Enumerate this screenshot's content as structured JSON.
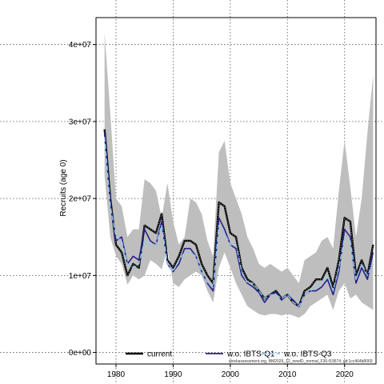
{
  "chart_data": {
    "type": "line",
    "title": "",
    "xlabel": "",
    "ylabel": "Recruits (age 0)",
    "xlim": [
      1976.5,
      2025.5
    ],
    "ylim": [
      -1500000,
      43500000
    ],
    "xticks": [
      1980,
      1990,
      2000,
      2010,
      2020
    ],
    "yticks": [
      0,
      10000000,
      20000000,
      30000000,
      40000000
    ],
    "ytick_labels": [
      "0e+00",
      "1e+07",
      "2e+07",
      "3e+07",
      "4e+07"
    ],
    "grid": true,
    "legend_position": "bottom",
    "x": [
      1978,
      1979,
      1980,
      1981,
      1982,
      1983,
      1984,
      1985,
      1986,
      1987,
      1988,
      1989,
      1990,
      1991,
      1992,
      1993,
      1994,
      1995,
      1996,
      1997,
      1998,
      1999,
      2000,
      2001,
      2002,
      2003,
      2004,
      2005,
      2006,
      2007,
      2008,
      2009,
      2010,
      2011,
      2012,
      2013,
      2014,
      2015,
      2016,
      2017,
      2018,
      2019,
      2020,
      2021,
      2022,
      2023,
      2024,
      2025
    ],
    "band": {
      "color": "#bebebe",
      "lower": [
        23000000,
        15000000,
        12500000,
        11500000,
        8800000,
        10000000,
        9500000,
        10000000,
        12000000,
        11500000,
        10800000,
        13500000,
        9000000,
        8500000,
        9500000,
        10000000,
        10500000,
        10000000,
        8000000,
        6500000,
        11000000,
        13000000,
        11000000,
        9000000,
        7500000,
        6000000,
        5500000,
        5000000,
        4800000,
        5000000,
        5000000,
        4800000,
        5000000,
        4800000,
        4500000,
        5000000,
        6000000,
        6500000,
        7000000,
        7500000,
        5500000,
        8000000,
        9000000,
        7000000,
        7500000,
        6500000,
        6000000,
        5500000
      ],
      "upper": [
        41500000,
        31000000,
        20000000,
        19000000,
        15000000,
        16000000,
        16000000,
        22500000,
        22000000,
        21000000,
        17500000,
        22000000,
        17000000,
        14000000,
        15000000,
        20000000,
        19500000,
        18000000,
        14500000,
        12500000,
        26000000,
        27500000,
        22000000,
        20000000,
        18000000,
        15000000,
        13500000,
        11500000,
        11000000,
        11500000,
        11000000,
        10500000,
        11000000,
        10000000,
        9000000,
        12000000,
        12500000,
        13000000,
        14500000,
        15000000,
        13500000,
        21000000,
        27500000,
        21500000,
        15000000,
        20000000,
        28500000,
        36000000
      ]
    },
    "series": [
      {
        "name": "current",
        "color": "#000000",
        "dash": "solid",
        "values": [
          29000000,
          20000000,
          14000000,
          13000000,
          10000000,
          11500000,
          11000000,
          16500000,
          16000000,
          15500000,
          18000000,
          12000000,
          11000000,
          12500000,
          14500000,
          14500000,
          14000000,
          11500000,
          10000000,
          9000000,
          19500000,
          19000000,
          15500000,
          15000000,
          11000000,
          9500000,
          9000000,
          8000000,
          7000000,
          7500000,
          8000000,
          7000000,
          7500000,
          6500000,
          6000000,
          8000000,
          8500000,
          9500000,
          9500000,
          11000000,
          8500000,
          12000000,
          17500000,
          17000000,
          10000000,
          12000000,
          10000000,
          14000000
        ]
      },
      {
        "name": "w.o. IBTS-Q1",
        "color": "#2a1e8a",
        "dash": "solid",
        "values": [
          28500000,
          19500000,
          14500000,
          15000000,
          11500000,
          12500000,
          12000000,
          16000000,
          14500000,
          14000000,
          17000000,
          11500000,
          10500000,
          11500000,
          13500000,
          13500000,
          12500000,
          10500000,
          9000000,
          8000000,
          17500000,
          16000000,
          14000000,
          13500000,
          10000000,
          9000000,
          8500000,
          7800000,
          6500000,
          7500000,
          7800000,
          6800000,
          7500000,
          6800000,
          6000000,
          7500000,
          8000000,
          8000000,
          8500000,
          9500000,
          7500000,
          10500000,
          16000000,
          15000000,
          9000000,
          11000000,
          9500000,
          13000000
        ]
      },
      {
        "name": "w.o. IBTS-Q3",
        "color": "#87ceeb",
        "dash": "6,3",
        "values": [
          28000000,
          19000000,
          15000000,
          14500000,
          11500000,
          11000000,
          11500000,
          14500000,
          14000000,
          14000000,
          16500000,
          11500000,
          10500000,
          12000000,
          13000000,
          13000000,
          12500000,
          10500000,
          9000000,
          8500000,
          16500000,
          15500000,
          14000000,
          14000000,
          10500000,
          9000000,
          9000000,
          8000000,
          7000000,
          7500000,
          7500000,
          7000000,
          7500000,
          6500000,
          6000000,
          7500000,
          8000000,
          8500000,
          9000000,
          10000000,
          8000000,
          11000000,
          15000000,
          14500000,
          9500000,
          11500000,
          10000000,
          11500000
        ]
      }
    ],
    "footnote": "stockassessment.org, BM2026_12_newID_normal_F36-f19674, git:1cc464b8069"
  }
}
